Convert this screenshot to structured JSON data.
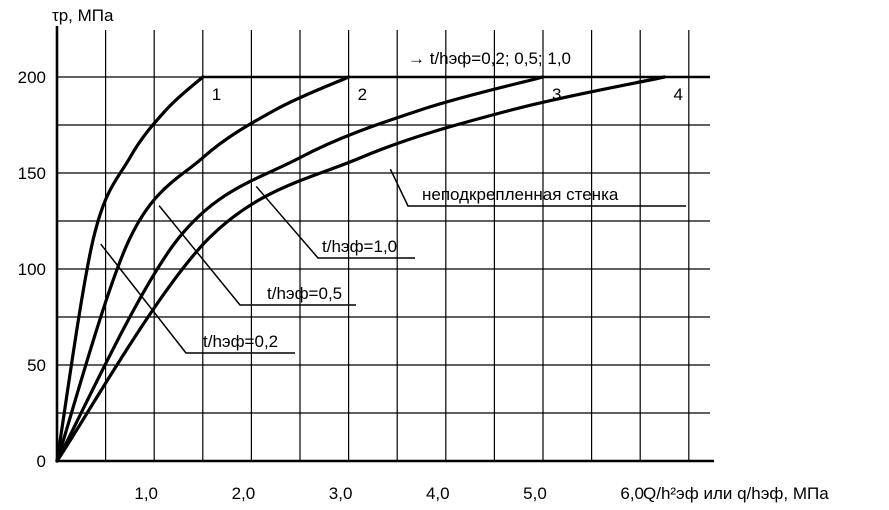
{
  "chart_data": {
    "type": "line",
    "y_axis_label": "τр, МПа",
    "x_axis_label": "Q/h²эф или q/hэф, МПа",
    "x_ticks": [
      {
        "value": 1,
        "label": "1,0"
      },
      {
        "value": 2,
        "label": "2,0"
      },
      {
        "value": 3,
        "label": "3,0"
      },
      {
        "value": 4,
        "label": "4,0"
      },
      {
        "value": 5,
        "label": "5,0"
      },
      {
        "value": 6,
        "label": "6,0"
      }
    ],
    "y_ticks": [
      {
        "value": 0,
        "label": "0"
      },
      {
        "value": 50,
        "label": "50"
      },
      {
        "value": 100,
        "label": "100"
      },
      {
        "value": 150,
        "label": "150"
      },
      {
        "value": 200,
        "label": "200"
      }
    ],
    "xlim": [
      0,
      6.8
    ],
    "ylim": [
      0,
      225
    ],
    "grid": true,
    "series": [
      {
        "label": "1",
        "saturation_x": 1.5,
        "y_max": 200,
        "points": [
          [
            0,
            0
          ],
          [
            0.375,
            116
          ],
          [
            0.75,
            158
          ],
          [
            1.125,
            183
          ],
          [
            1.5,
            200
          ]
        ]
      },
      {
        "label": "2",
        "saturation_x": 3.0,
        "y_max": 200,
        "points": [
          [
            0,
            0
          ],
          [
            0.75,
            116
          ],
          [
            1.5,
            158
          ],
          [
            2.25,
            183
          ],
          [
            3.0,
            200
          ]
        ]
      },
      {
        "label": "3",
        "saturation_x": 5.0,
        "y_max": 200,
        "points": [
          [
            0,
            0
          ],
          [
            1.25,
            116
          ],
          [
            2.5,
            158
          ],
          [
            3.75,
            183
          ],
          [
            5.0,
            200
          ]
        ]
      },
      {
        "label": "4",
        "saturation_x": 6.25,
        "y_max": 200,
        "points": [
          [
            0,
            0
          ],
          [
            1.5625,
            116
          ],
          [
            3.125,
            158
          ],
          [
            4.6875,
            183
          ],
          [
            6.25,
            200
          ]
        ]
      }
    ],
    "annotations": {
      "cap_note": "→ t/hэф=0,2; 0,5; 1,0",
      "unstiffened": "неподкрепленная стенка",
      "t10": "t/hэф=1,0",
      "t05": "t/hэф=0,5",
      "t02": "t/hэф=0,2"
    },
    "annotation_points": {
      "unstiffened": {
        "x": 3.43,
        "y": 152
      },
      "t10": {
        "x": 2.05,
        "y": 143
      },
      "t05": {
        "x": 1.05,
        "y": 133
      },
      "t02": {
        "x": 0.45,
        "y": 113
      }
    }
  }
}
